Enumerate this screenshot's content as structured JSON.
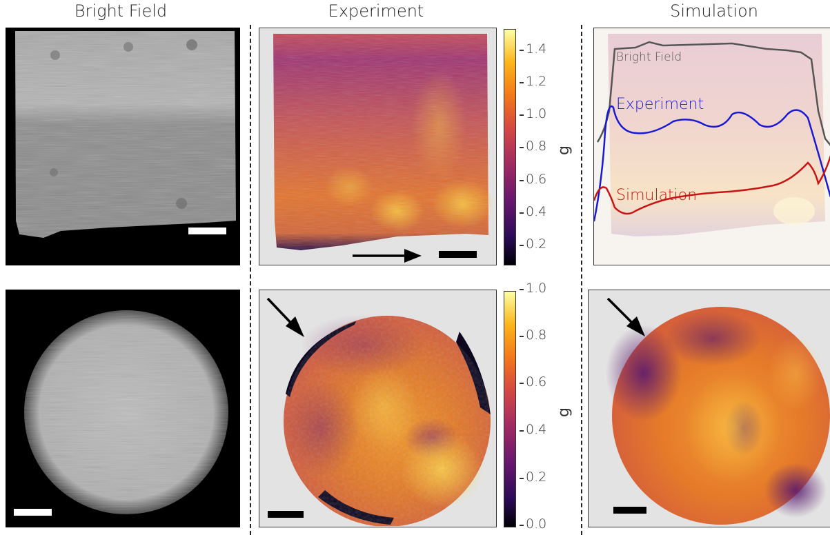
{
  "titles": {
    "bright_field": "Bright Field",
    "experiment": "Experiment",
    "simulation": "Simulation"
  },
  "colorbar_top": {
    "label": "g",
    "ticks": [
      "1.4",
      "1.2",
      "1.0",
      "0.8",
      "0.6",
      "0.4",
      "0.2"
    ]
  },
  "colorbar_bottom": {
    "label": "g",
    "ticks": [
      "1.0",
      "0.8",
      "0.6",
      "0.4",
      "0.2",
      "0.0"
    ]
  },
  "profile_overlay": {
    "bright_field_label": "Bright Field",
    "experiment_label": "Experiment",
    "simulation_label": "Simulation"
  },
  "colors": {
    "bright_field_line": "#555555",
    "experiment_line": "#1a1ad6",
    "simulation_line": "#c81414",
    "cmap_low": "#000004",
    "cmap_mid": "#b5367a",
    "cmap_high": "#fcffa4"
  },
  "icons": [
    "arrow-icon",
    "scale-bar"
  ]
}
